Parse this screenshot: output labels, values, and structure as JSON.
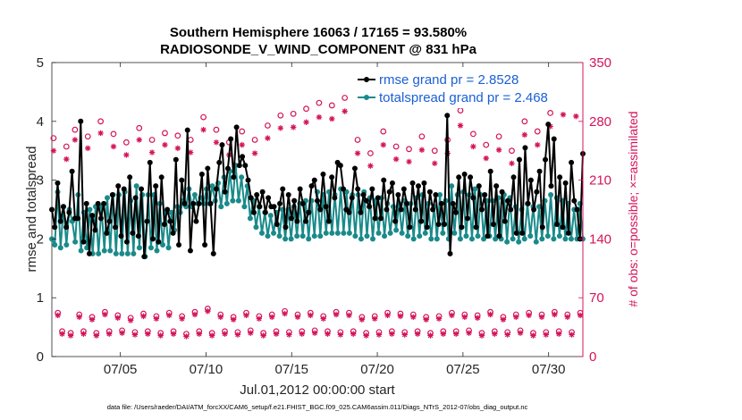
{
  "chart_data": {
    "type": "line",
    "title": "Southern Hemisphere 16063 / 17165 = 93.580%",
    "subtitle": "RADIOSONDE_V_WIND_COMPONENT @ 831 hPa",
    "xlabel": "Jul.01,2012 00:00:00 start",
    "ylabel": "rmse and totalspread",
    "ylabel_right": "# of obs: o=possible; ×=assimilated",
    "xlim": [
      1,
      32
    ],
    "ylim": [
      0,
      5
    ],
    "ylim_right": [
      0,
      350
    ],
    "x_ticks": [
      5,
      10,
      15,
      20,
      25,
      30
    ],
    "x_tick_labels": [
      "07/05",
      "07/10",
      "07/15",
      "07/20",
      "07/25",
      "07/30"
    ],
    "y_ticks": [
      0,
      1,
      2,
      3,
      4,
      5
    ],
    "y_tick_labels": [
      "0",
      "1",
      "2",
      "3",
      "4",
      "5"
    ],
    "y_right_ticks": [
      0,
      70,
      140,
      210,
      280,
      350
    ],
    "y_right_tick_labels": [
      "0",
      "70",
      "140",
      "210",
      "280",
      "350"
    ],
    "legend_position": "top-right",
    "series": [
      {
        "name": "rmse grand pr = 2.8528",
        "color": "#000000",
        "values": [
          2.5,
          2.2,
          2.95,
          2.3,
          2.55,
          2.2,
          2.45,
          3.15,
          2.35,
          2.35,
          4.0,
          1.95,
          2.6,
          1.75,
          2.4,
          2.15,
          2.6,
          2.35,
          2.6,
          2.1,
          2.3,
          2.75,
          2.2,
          2.9,
          2.05,
          2.85,
          1.95,
          3.05,
          2.1,
          2.7,
          2.05,
          2.85,
          1.7,
          2.3,
          3.3,
          2.0,
          2.9,
          1.95,
          3.05,
          2.25,
          2.5,
          2.3,
          2.1,
          3.35,
          1.9,
          3.0,
          2.6,
          3.85,
          1.8,
          2.6,
          2.3,
          2.6,
          3.1,
          1.9,
          3.2,
          2.6,
          1.75,
          2.85,
          3.3,
          3.6,
          2.8,
          3.2,
          3.7,
          3.05,
          3.9,
          3.25,
          3.4,
          3.25,
          3.0,
          2.7,
          2.45,
          2.75,
          2.55,
          2.8,
          2.45,
          2.7,
          2.55,
          2.55,
          2.25,
          2.6,
          2.85,
          2.2,
          2.75,
          2.35,
          2.65,
          2.3,
          2.85,
          2.6,
          2.3,
          2.45,
          2.9,
          3.0,
          2.65,
          2.5,
          3.1,
          2.55,
          2.3,
          3.05,
          2.7,
          3.3,
          3.25,
          2.85,
          2.5,
          2.45,
          2.7,
          3.2,
          2.85,
          2.45,
          2.75,
          2.65,
          2.55,
          2.85,
          2.35,
          2.7,
          2.35,
          3.0,
          2.5,
          2.8,
          2.95,
          2.3,
          2.75,
          2.5,
          2.85,
          2.6,
          2.2,
          2.95,
          2.5,
          2.9,
          2.3,
          2.95,
          2.2,
          2.8,
          2.5,
          2.75,
          2.25,
          2.6,
          2.25,
          4.1,
          1.75,
          2.6,
          2.45,
          3.05,
          2.2,
          3.1,
          2.35,
          3.05,
          2.7,
          2.2,
          2.9,
          2.5,
          2.75,
          2.05,
          3.15,
          2.25,
          2.9,
          2.05,
          2.8,
          2.3,
          2.65,
          2.5,
          3.05,
          2.1,
          3.35,
          2.1,
          3.55,
          2.6,
          3.0,
          2.5,
          2.8,
          3.15,
          2.2,
          3.35,
          3.95,
          2.9,
          3.7,
          2.25,
          3.05,
          2.2,
          2.95,
          2.1,
          3.3,
          2.65,
          2.5,
          2.0,
          3.45
        ]
      },
      {
        "name": "totalspread grand pr = 2.468",
        "color": "#1a8a8a",
        "values": [
          2.0,
          1.9,
          2.8,
          1.85,
          2.55,
          1.9,
          2.5,
          2.3,
          1.95,
          2.75,
          1.8,
          2.45,
          1.85,
          2.5,
          1.75,
          2.55,
          1.75,
          2.55,
          1.8,
          2.7,
          1.8,
          2.75,
          1.75,
          2.75,
          1.75,
          2.8,
          1.75,
          2.65,
          1.75,
          2.9,
          1.85,
          2.75,
          1.7,
          2.75,
          1.85,
          2.75,
          1.8,
          2.6,
          1.9,
          2.45,
          1.85,
          2.45,
          2.15,
          2.55,
          2.45,
          2.65,
          2.55,
          2.85,
          2.55,
          2.75,
          2.6,
          2.7,
          2.6,
          2.85,
          2.6,
          2.9,
          2.65,
          2.95,
          2.55,
          3.05,
          2.6,
          3.15,
          2.65,
          3.25,
          2.65,
          3.05,
          2.55,
          2.9,
          2.35,
          2.65,
          2.2,
          2.55,
          2.1,
          2.45,
          2.05,
          2.4,
          2.1,
          2.45,
          2.05,
          2.5,
          2.0,
          2.5,
          2.0,
          2.55,
          2.05,
          2.6,
          2.05,
          2.65,
          2.0,
          2.65,
          2.05,
          2.8,
          2.05,
          2.75,
          2.1,
          2.8,
          2.1,
          2.75,
          2.1,
          2.85,
          2.1,
          2.8,
          2.1,
          2.75,
          2.05,
          2.75,
          2.0,
          2.8,
          2.05,
          2.7,
          2.0,
          2.65,
          2.1,
          2.7,
          2.05,
          2.6,
          2.1,
          2.55,
          2.15,
          2.6,
          2.1,
          2.65,
          2.05,
          2.6,
          2.0,
          2.7,
          2.05,
          2.75,
          2.1,
          2.6,
          2.0,
          2.55,
          2.0,
          2.75,
          2.1,
          2.65,
          2.0,
          2.9,
          2.1,
          2.75,
          2.0,
          2.8,
          2.05,
          2.75,
          2.0,
          2.85,
          2.05,
          2.75,
          2.0,
          2.65,
          2.05,
          2.65,
          2.0,
          2.7,
          2.0,
          2.75,
          1.95,
          2.7,
          2.0,
          2.55,
          1.95,
          2.5,
          2.0,
          2.6,
          2.05,
          2.55,
          1.95,
          2.55,
          2.0,
          2.65,
          2.05,
          2.75,
          2.0,
          2.7,
          2.05,
          2.65,
          2.0,
          2.6,
          2.0,
          2.5,
          2.0,
          2.6,
          2.0
        ]
      }
    ],
    "obs_possible": {
      "name": "possible (o)",
      "color": "#d4145a",
      "x": [
        1.1,
        1.35,
        1.6,
        1.85,
        2.1,
        2.35,
        2.6,
        2.85,
        3.1,
        3.35,
        3.6,
        3.85,
        4.1,
        4.35,
        4.6,
        4.85,
        5.1,
        5.35,
        5.6,
        5.85,
        6.1,
        6.35,
        6.6,
        6.85,
        7.1,
        7.35,
        7.6,
        7.85,
        8.1,
        8.35,
        8.6,
        8.85,
        9.1,
        9.35,
        9.6,
        9.85,
        10.1,
        10.35,
        10.6,
        10.85,
        11.1,
        11.35,
        11.6,
        11.85,
        12.1,
        12.35,
        12.6,
        12.85,
        13.1,
        13.35,
        13.6,
        13.85,
        14.1,
        14.35,
        14.6,
        14.85,
        15.1,
        15.35,
        15.6,
        15.85,
        16.1,
        16.35,
        16.6,
        16.85,
        17.1,
        17.35,
        17.6,
        17.85,
        18.1,
        18.35,
        18.6,
        18.85,
        19.1,
        19.35,
        19.6,
        19.85,
        20.1,
        20.35,
        20.6,
        20.85,
        21.1,
        21.35,
        21.6,
        21.85,
        22.1,
        22.35,
        22.6,
        22.85,
        23.1,
        23.35,
        23.6,
        23.85,
        24.1,
        24.35,
        24.6,
        24.85,
        25.1,
        25.35,
        25.6,
        25.85,
        26.1,
        26.35,
        26.6,
        26.85,
        27.1,
        27.35,
        27.6,
        27.85,
        28.1,
        28.35,
        28.6,
        28.85,
        29.1,
        29.35,
        29.6,
        29.85,
        30.1,
        30.35,
        30.6,
        30.85,
        31.1,
        31.35,
        31.6,
        31.85
      ],
      "values": [
        260,
        52,
        30,
        250,
        28,
        270,
        50,
        30,
        262,
        47,
        28,
        280,
        53,
        30,
        265,
        49,
        31,
        255,
        46,
        29,
        272,
        51,
        30,
        258,
        48,
        28,
        266,
        52,
        30,
        263,
        48,
        27,
        258,
        53,
        30,
        285,
        57,
        28,
        270,
        50,
        30,
        255,
        47,
        29,
        268,
        52,
        31,
        258,
        48,
        28,
        275,
        50,
        30,
        287,
        54,
        29,
        289,
        50,
        30,
        295,
        52,
        31,
        302,
        48,
        30,
        299,
        53,
        29,
        308,
        52,
        30,
        258,
        47,
        28,
        242,
        48,
        29,
        268,
        52,
        30,
        250,
        51,
        29,
        247,
        50,
        30,
        262,
        47,
        28,
        245,
        48,
        30,
        258,
        52,
        30,
        293,
        50,
        31,
        265,
        49,
        28,
        252,
        53,
        30,
        262,
        47,
        29,
        245,
        50,
        31,
        280,
        52,
        28,
        268,
        50,
        29,
        290,
        53,
        30,
        305,
        50,
        29,
        303,
        52
      ]
    },
    "obs_assimilated": {
      "name": "assimilated (×)",
      "color": "#d4145a",
      "x": [
        1.1,
        1.35,
        1.6,
        1.85,
        2.1,
        2.35,
        2.6,
        2.85,
        3.1,
        3.35,
        3.6,
        3.85,
        4.1,
        4.35,
        4.6,
        4.85,
        5.1,
        5.35,
        5.6,
        5.85,
        6.1,
        6.35,
        6.6,
        6.85,
        7.1,
        7.35,
        7.6,
        7.85,
        8.1,
        8.35,
        8.6,
        8.85,
        9.1,
        9.35,
        9.6,
        9.85,
        10.1,
        10.35,
        10.6,
        10.85,
        11.1,
        11.35,
        11.6,
        11.85,
        12.1,
        12.35,
        12.6,
        12.85,
        13.1,
        13.35,
        13.6,
        13.85,
        14.1,
        14.35,
        14.6,
        14.85,
        15.1,
        15.35,
        15.6,
        15.85,
        16.1,
        16.35,
        16.6,
        16.85,
        17.1,
        17.35,
        17.6,
        17.85,
        18.1,
        18.35,
        18.6,
        18.85,
        19.1,
        19.35,
        19.6,
        19.85,
        20.1,
        20.35,
        20.6,
        20.85,
        21.1,
        21.35,
        21.6,
        21.85,
        22.1,
        22.35,
        22.6,
        22.85,
        23.1,
        23.35,
        23.6,
        23.85,
        24.1,
        24.35,
        24.6,
        24.85,
        25.1,
        25.35,
        25.6,
        25.85,
        26.1,
        26.35,
        26.6,
        26.85,
        27.1,
        27.35,
        27.6,
        27.85,
        28.1,
        28.35,
        28.6,
        28.85,
        29.1,
        29.35,
        29.6,
        29.85,
        30.1,
        30.35,
        30.6,
        30.85,
        31.1,
        31.35,
        31.6,
        31.85
      ],
      "values": [
        245,
        49,
        27,
        235,
        25,
        258,
        47,
        27,
        248,
        44,
        25,
        266,
        50,
        27,
        250,
        46,
        28,
        240,
        43,
        26,
        258,
        48,
        27,
        243,
        45,
        25,
        252,
        49,
        27,
        248,
        45,
        24,
        243,
        50,
        27,
        270,
        54,
        25,
        255,
        47,
        27,
        240,
        44,
        26,
        252,
        49,
        28,
        242,
        45,
        25,
        260,
        47,
        27,
        272,
        51,
        26,
        273,
        47,
        27,
        279,
        49,
        28,
        285,
        45,
        27,
        283,
        50,
        26,
        292,
        49,
        27,
        242,
        44,
        25,
        227,
        45,
        26,
        252,
        49,
        27,
        235,
        48,
        26,
        232,
        47,
        27,
        246,
        44,
        25,
        230,
        45,
        27,
        242,
        49,
        27,
        275,
        47,
        28,
        250,
        46,
        25,
        236,
        50,
        27,
        246,
        44,
        26,
        230,
        47,
        28,
        264,
        49,
        25,
        252,
        47,
        26,
        274,
        50,
        27,
        288,
        47,
        26,
        286,
        49
      ]
    }
  },
  "footer": "data file: /Users/raeder/DAI/ATM_forcXX/CAM6_setup/f.e21.FHIST_BGC.f09_025.CAM6assim.011/Diags_NTrS_2012-07/obs_diag_output.nc"
}
